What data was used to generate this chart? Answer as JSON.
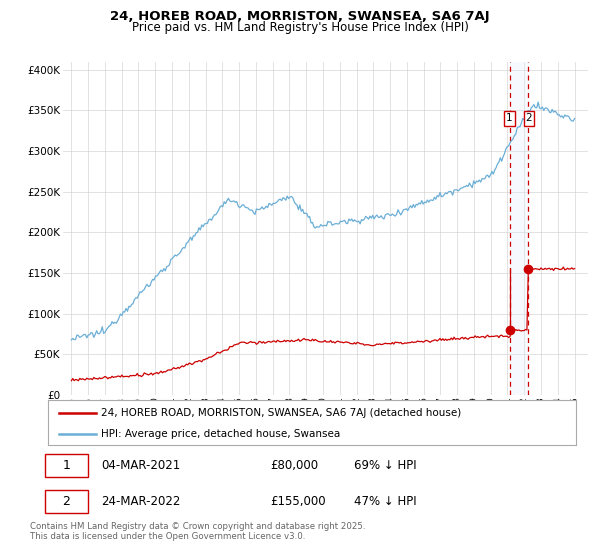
{
  "title1": "24, HOREB ROAD, MORRISTON, SWANSEA, SA6 7AJ",
  "title2": "Price paid vs. HM Land Registry's House Price Index (HPI)",
  "ylim": [
    0,
    410000
  ],
  "yticks": [
    0,
    50000,
    100000,
    150000,
    200000,
    250000,
    300000,
    350000,
    400000
  ],
  "ytick_labels": [
    "£0",
    "£50K",
    "£100K",
    "£150K",
    "£200K",
    "£250K",
    "£300K",
    "£350K",
    "£400K"
  ],
  "hpi_color": "#6baed6",
  "paid_color": "#cc0000",
  "vline_color": "#cc0000",
  "shade_color": "#ddeeff",
  "transaction1_x": 2021.17,
  "transaction1_y": 80000,
  "transaction2_x": 2022.23,
  "transaction2_y": 155000,
  "legend_label1": "24, HOREB ROAD, MORRISTON, SWANSEA, SA6 7AJ (detached house)",
  "legend_label2": "HPI: Average price, detached house, Swansea",
  "table_row1": [
    "1",
    "04-MAR-2021",
    "£80,000",
    "69% ↓ HPI"
  ],
  "table_row2": [
    "2",
    "24-MAR-2022",
    "£155,000",
    "47% ↓ HPI"
  ],
  "footnote": "Contains HM Land Registry data © Crown copyright and database right 2025.\nThis data is licensed under the Open Government Licence v3.0.",
  "background_color": "#ffffff",
  "grid_color": "#cccccc",
  "xlim_left": 1994.5,
  "xlim_right": 2025.8
}
